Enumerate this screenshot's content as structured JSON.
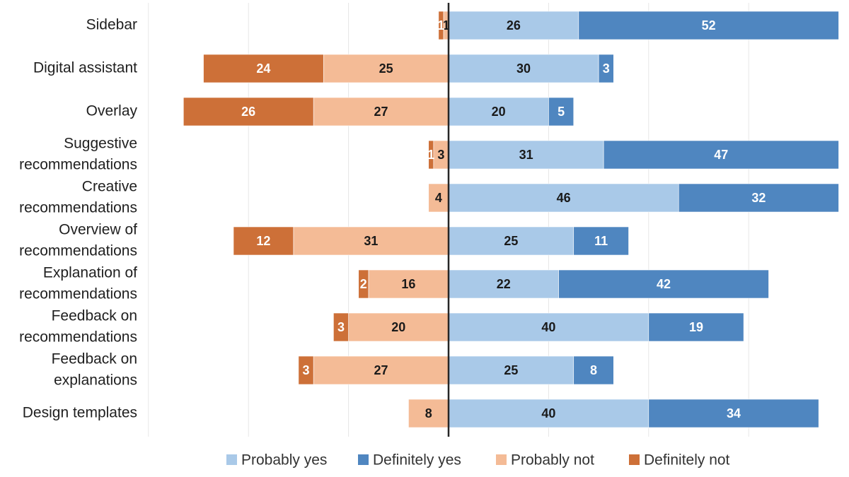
{
  "chart_data": {
    "type": "bar",
    "orientation": "horizontal-diverging",
    "stacked": true,
    "title": "",
    "xlabel": "",
    "ylabel": "",
    "xlim": [
      -60,
      78
    ],
    "grid": true,
    "legend_position": "bottom",
    "categories": [
      [
        "Sidebar"
      ],
      [
        "Digital assistant"
      ],
      [
        "Overlay"
      ],
      [
        "Suggestive",
        "recommendations"
      ],
      [
        "Creative",
        "recommendations"
      ],
      [
        "Overview of",
        "recommendations"
      ],
      [
        "Explanation of",
        "recommendations"
      ],
      [
        "Feedback on",
        "recommendations"
      ],
      [
        "Feedback on",
        "explanations"
      ],
      [
        "Design templates"
      ]
    ],
    "series": [
      {
        "name": "Probably yes",
        "side": "positive",
        "order": 0,
        "color": "#a9c9e8",
        "label_color": "#1a1a1a",
        "values": [
          26,
          30,
          20,
          31,
          46,
          25,
          22,
          40,
          25,
          40
        ]
      },
      {
        "name": "Definitely yes",
        "side": "positive",
        "order": 1,
        "color": "#4f86c0",
        "label_color": "#ffffff",
        "values": [
          52,
          3,
          5,
          47,
          32,
          11,
          42,
          19,
          8,
          34
        ]
      },
      {
        "name": "Probably not",
        "side": "negative",
        "order": 0,
        "color": "#f4bb96",
        "label_color": "#1a1a1a",
        "values": [
          1,
          25,
          27,
          3,
          4,
          31,
          16,
          20,
          27,
          8
        ]
      },
      {
        "name": "Definitely not",
        "side": "negative",
        "order": 1,
        "color": "#cd7038",
        "label_color": "#ffffff",
        "values": [
          1,
          24,
          26,
          1,
          0,
          12,
          2,
          3,
          3,
          0
        ]
      }
    ],
    "legend_order": [
      "Probably yes",
      "Definitely yes",
      "Probably not",
      "Definitely not"
    ]
  }
}
